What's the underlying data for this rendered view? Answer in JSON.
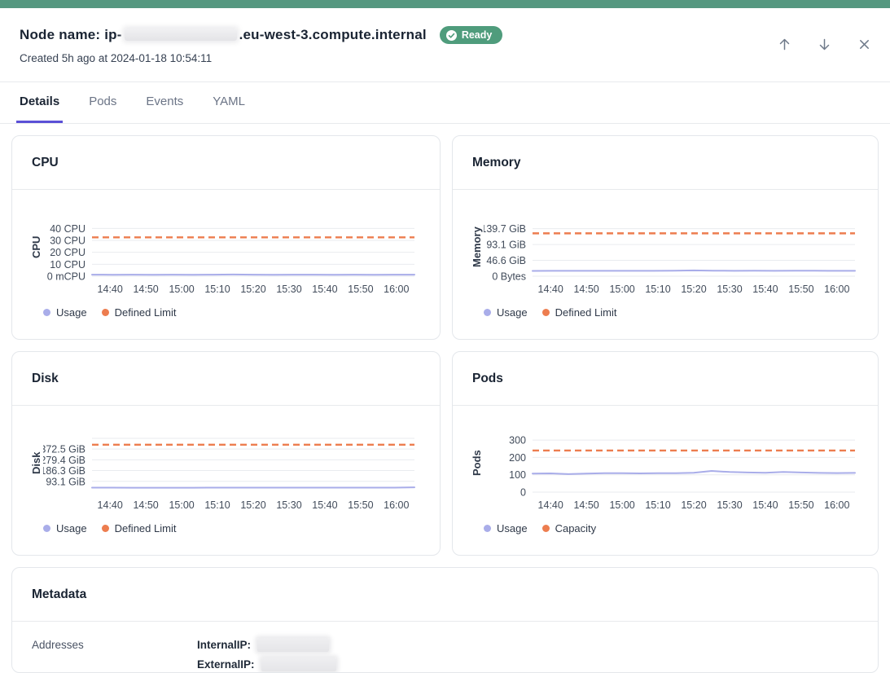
{
  "header": {
    "node_label_prefix": "Node name: ip-",
    "node_label_suffix": ".eu-west-3.compute.internal",
    "status_badge": "Ready",
    "created_line": "Created 5h ago at 2024-01-18 10:54:11"
  },
  "tabs": [
    {
      "label": "Details",
      "active": true
    },
    {
      "label": "Pods",
      "active": false
    },
    {
      "label": "Events",
      "active": false
    },
    {
      "label": "YAML",
      "active": false
    }
  ],
  "chart_data": [
    {
      "type": "line",
      "title": "CPU",
      "axis_title": "CPU",
      "ymax": 45,
      "yticks": [
        {
          "value": 40,
          "label": "40 CPU"
        },
        {
          "value": 30,
          "label": "30 CPU"
        },
        {
          "value": 20,
          "label": "20 CPU"
        },
        {
          "value": 10,
          "label": "10 CPU"
        },
        {
          "value": 0,
          "label": "0 mCPU"
        }
      ],
      "xticks": [
        "14:40",
        "14:50",
        "15:00",
        "15:10",
        "15:20",
        "15:30",
        "15:40",
        "15:50",
        "16:00"
      ],
      "limit": {
        "name": "Defined Limit",
        "value": 32.5,
        "color": "#ed7d4f",
        "style": "dashed"
      },
      "usage": {
        "name": "Usage",
        "color": "#a9ade9",
        "values": [
          1.3,
          1.2,
          1.3,
          1.2,
          1.3,
          1.2,
          1.3,
          1.4,
          1.3,
          1.2,
          1.3,
          1.3,
          1.2,
          1.3,
          1.2,
          1.3,
          1.3
        ]
      },
      "legend": [
        {
          "label": "Usage",
          "color": "#a9ade9"
        },
        {
          "label": "Defined Limit",
          "color": "#ed7d4f"
        }
      ],
      "top_gridline": false
    },
    {
      "type": "line",
      "title": "Memory",
      "axis_title": "Memory",
      "ymax": 158,
      "yticks": [
        {
          "value": 139.7,
          "label": "139.7 GiB"
        },
        {
          "value": 93.1,
          "label": "93.1 GiB"
        },
        {
          "value": 46.6,
          "label": "46.6 GiB"
        },
        {
          "value": 0,
          "label": "0 Bytes"
        }
      ],
      "xticks": [
        "14:40",
        "14:50",
        "15:00",
        "15:10",
        "15:20",
        "15:30",
        "15:40",
        "15:50",
        "16:00"
      ],
      "limit": {
        "name": "Defined Limit",
        "value": 126,
        "color": "#ed7d4f",
        "style": "dashed"
      },
      "usage": {
        "name": "Usage",
        "color": "#a9ade9",
        "values": [
          15.6,
          15.8,
          15.7,
          15.8,
          15.7,
          15.9,
          15.8,
          16.0,
          16.9,
          16.2,
          15.9,
          16.0,
          15.9,
          16.1,
          16.0,
          15.8,
          15.9
        ]
      },
      "legend": [
        {
          "label": "Usage",
          "color": "#a9ade9"
        },
        {
          "label": "Defined Limit",
          "color": "#ed7d4f"
        }
      ],
      "top_gridline": false
    },
    {
      "type": "line",
      "title": "Disk",
      "axis_title": "Disk",
      "ymax": 465,
      "yticks": [
        {
          "value": 372.5,
          "label": "372.5 GiB"
        },
        {
          "value": 279.4,
          "label": "279.4 GiB"
        },
        {
          "value": 186.3,
          "label": "186.3 GiB"
        },
        {
          "value": 93.1,
          "label": "93.1 GiB"
        }
      ],
      "xticks": [
        "14:40",
        "14:50",
        "15:00",
        "15:10",
        "15:20",
        "15:30",
        "15:40",
        "15:50",
        "16:00"
      ],
      "limit": {
        "name": "Defined Limit",
        "value": 410,
        "color": "#ed7d4f",
        "style": "dashed"
      },
      "usage": {
        "name": "Usage",
        "color": "#a9ade9",
        "values": [
          38.5,
          38.6,
          37.9,
          38.2,
          38.3,
          38.3,
          38.4,
          38.4,
          38.4,
          38.5,
          38.5,
          38.4,
          38.5,
          38.5,
          38.5,
          38.8,
          41.5
        ]
      },
      "legend": [
        {
          "label": "Usage",
          "color": "#a9ade9"
        },
        {
          "label": "Defined Limit",
          "color": "#ed7d4f"
        }
      ],
      "top_gridline": true
    },
    {
      "type": "line",
      "title": "Pods",
      "axis_title": "Pods",
      "ymax": 310,
      "yticks": [
        {
          "value": 300,
          "label": "300"
        },
        {
          "value": 200,
          "label": "200"
        },
        {
          "value": 100,
          "label": "100"
        },
        {
          "value": 0,
          "label": "0"
        }
      ],
      "xticks": [
        "14:40",
        "14:50",
        "15:00",
        "15:10",
        "15:20",
        "15:30",
        "15:40",
        "15:50",
        "16:00"
      ],
      "limit": {
        "name": "Capacity",
        "value": 240,
        "color": "#ed7d4f",
        "style": "dashed"
      },
      "usage": {
        "name": "Usage",
        "color": "#a9ade9",
        "values": [
          107,
          108,
          104,
          107,
          109,
          109,
          108,
          109,
          109,
          112,
          122,
          116,
          113,
          112,
          116,
          113,
          111,
          110,
          111
        ]
      },
      "legend": [
        {
          "label": "Usage",
          "color": "#a9ade9"
        },
        {
          "label": "Capacity",
          "color": "#ed7d4f"
        }
      ],
      "top_gridline": false
    }
  ],
  "metadata": {
    "title": "Metadata",
    "rows": [
      {
        "label": "Addresses",
        "entries": [
          {
            "key": "InternalIP:",
            "value_redacted": true
          },
          {
            "key": "ExternalIP:",
            "value_redacted": true
          }
        ]
      }
    ]
  },
  "colors": {
    "topbar_green": "#559880",
    "badge_green": "#4f9c7c",
    "accent_purple": "#5b50d6",
    "usage_line": "#a9ade9",
    "limit_line": "#ed7d4f"
  }
}
